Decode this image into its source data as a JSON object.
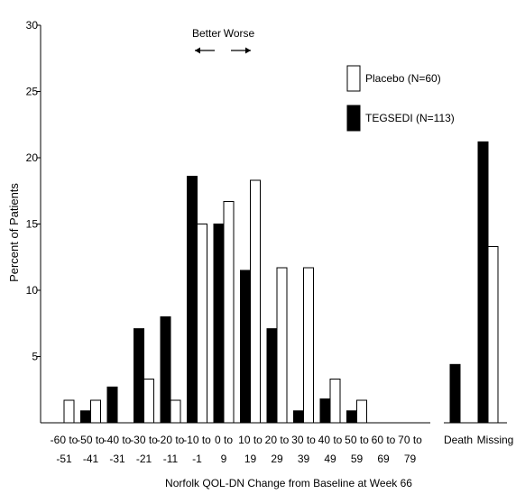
{
  "chart_data": {
    "type": "bar",
    "xlabel": "Norfolk QOL-DN Change from Baseline at Week 66",
    "ylabel": "Percent of Patients",
    "ylim": [
      0,
      30
    ],
    "y_ticks": [
      5,
      10,
      15,
      20,
      25,
      30
    ],
    "grid": false,
    "legend_position": "top-right",
    "direction_labels": {
      "better": "Better",
      "worse": "Worse"
    },
    "categories": [
      {
        "line1": "-60 to",
        "line2": "-51"
      },
      {
        "line1": "-50 to",
        "line2": "-41"
      },
      {
        "line1": "-40 to",
        "line2": "-31"
      },
      {
        "line1": "-30 to",
        "line2": "-21"
      },
      {
        "line1": "-20 to",
        "line2": "-11"
      },
      {
        "line1": "-10 to",
        "line2": "-1"
      },
      {
        "line1": "0 to",
        "line2": "9"
      },
      {
        "line1": "10 to",
        "line2": "19"
      },
      {
        "line1": "20 to",
        "line2": "29"
      },
      {
        "line1": "30 to",
        "line2": "39"
      },
      {
        "line1": "40 to",
        "line2": "49"
      },
      {
        "line1": "50 to",
        "line2": "59"
      },
      {
        "line1": "60 to",
        "line2": "69"
      },
      {
        "line1": "70 to",
        "line2": "79"
      }
    ],
    "extra_categories": [
      "Death",
      "Missing"
    ],
    "series": [
      {
        "name": "Placebo (N=60)",
        "color": "#ffffff",
        "values": [
          1.7,
          1.7,
          0,
          3.3,
          1.7,
          15.0,
          16.7,
          18.3,
          11.7,
          11.7,
          3.3,
          1.7,
          0,
          0
        ],
        "extra_values": [
          0,
          13.3
        ]
      },
      {
        "name": "TEGSEDI (N=113)",
        "color": "#000000",
        "values": [
          0,
          0.9,
          2.7,
          7.1,
          8.0,
          18.6,
          15.0,
          11.5,
          7.1,
          0.9,
          1.8,
          0.9,
          0,
          0
        ],
        "extra_values": [
          4.4,
          21.2
        ]
      }
    ]
  }
}
